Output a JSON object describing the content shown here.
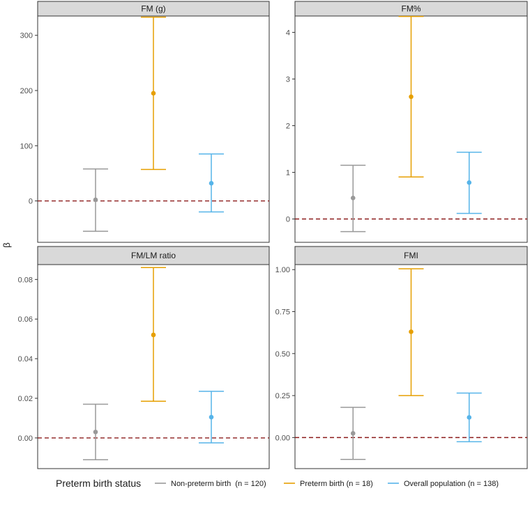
{
  "chart_data": {
    "type": "errorbar",
    "ylabel": "β",
    "legend": {
      "title": "Preterm birth status",
      "position": "bottom",
      "entries": [
        {
          "name": "Non-preterm birth  (n = 120)",
          "color": "#999999"
        },
        {
          "name": "Preterm birth (n = 18)",
          "color": "#E69F00"
        },
        {
          "name": "Overall population (n = 138)",
          "color": "#56B4E9"
        }
      ]
    },
    "reference_line": {
      "y": 0,
      "color": "#8B1A1A",
      "style": "dashed"
    },
    "panels": [
      {
        "title": "FM (g)",
        "ylim": [
          -75,
          335
        ],
        "yticks": [
          0,
          100,
          200,
          300
        ],
        "ytick_labels": [
          "0",
          "100",
          "200",
          "300"
        ],
        "points": [
          {
            "group": "Non-preterm birth",
            "estimate": 2,
            "lower": -55,
            "upper": 58
          },
          {
            "group": "Preterm birth",
            "estimate": 195,
            "lower": 57,
            "upper": 333
          },
          {
            "group": "Overall population",
            "estimate": 32,
            "lower": -20,
            "upper": 85
          }
        ]
      },
      {
        "title": "FM%",
        "ylim": [
          -0.5,
          4.35
        ],
        "yticks": [
          0,
          1,
          2,
          3,
          4
        ],
        "ytick_labels": [
          "0",
          "1",
          "2",
          "3",
          "4"
        ],
        "points": [
          {
            "group": "Non-preterm birth",
            "estimate": 0.45,
            "lower": -0.27,
            "upper": 1.15
          },
          {
            "group": "Preterm birth",
            "estimate": 2.62,
            "lower": 0.9,
            "upper": 4.34
          },
          {
            "group": "Overall population",
            "estimate": 0.78,
            "lower": 0.12,
            "upper": 1.43
          }
        ]
      },
      {
        "title": "FM/LM ratio",
        "ylim": [
          -0.0155,
          0.0875
        ],
        "yticks": [
          0,
          0.02,
          0.04,
          0.06,
          0.08
        ],
        "ytick_labels": [
          "0.00",
          "0.02",
          "0.04",
          "0.06",
          "0.08"
        ],
        "points": [
          {
            "group": "Non-preterm birth",
            "estimate": 0.003,
            "lower": -0.011,
            "upper": 0.017
          },
          {
            "group": "Preterm birth",
            "estimate": 0.052,
            "lower": 0.0185,
            "upper": 0.086
          },
          {
            "group": "Overall population",
            "estimate": 0.0105,
            "lower": -0.0025,
            "upper": 0.0235
          }
        ]
      },
      {
        "title": "FMI",
        "ylim": [
          -0.185,
          1.03
        ],
        "yticks": [
          0,
          0.25,
          0.5,
          0.75,
          1.0
        ],
        "ytick_labels": [
          "0.00",
          "0.25",
          "0.50",
          "0.75",
          "1.00"
        ],
        "points": [
          {
            "group": "Non-preterm birth",
            "estimate": 0.025,
            "lower": -0.13,
            "upper": 0.18
          },
          {
            "group": "Preterm birth",
            "estimate": 0.63,
            "lower": 0.25,
            "upper": 1.005
          },
          {
            "group": "Overall population",
            "estimate": 0.12,
            "lower": -0.025,
            "upper": 0.265
          }
        ]
      }
    ]
  }
}
